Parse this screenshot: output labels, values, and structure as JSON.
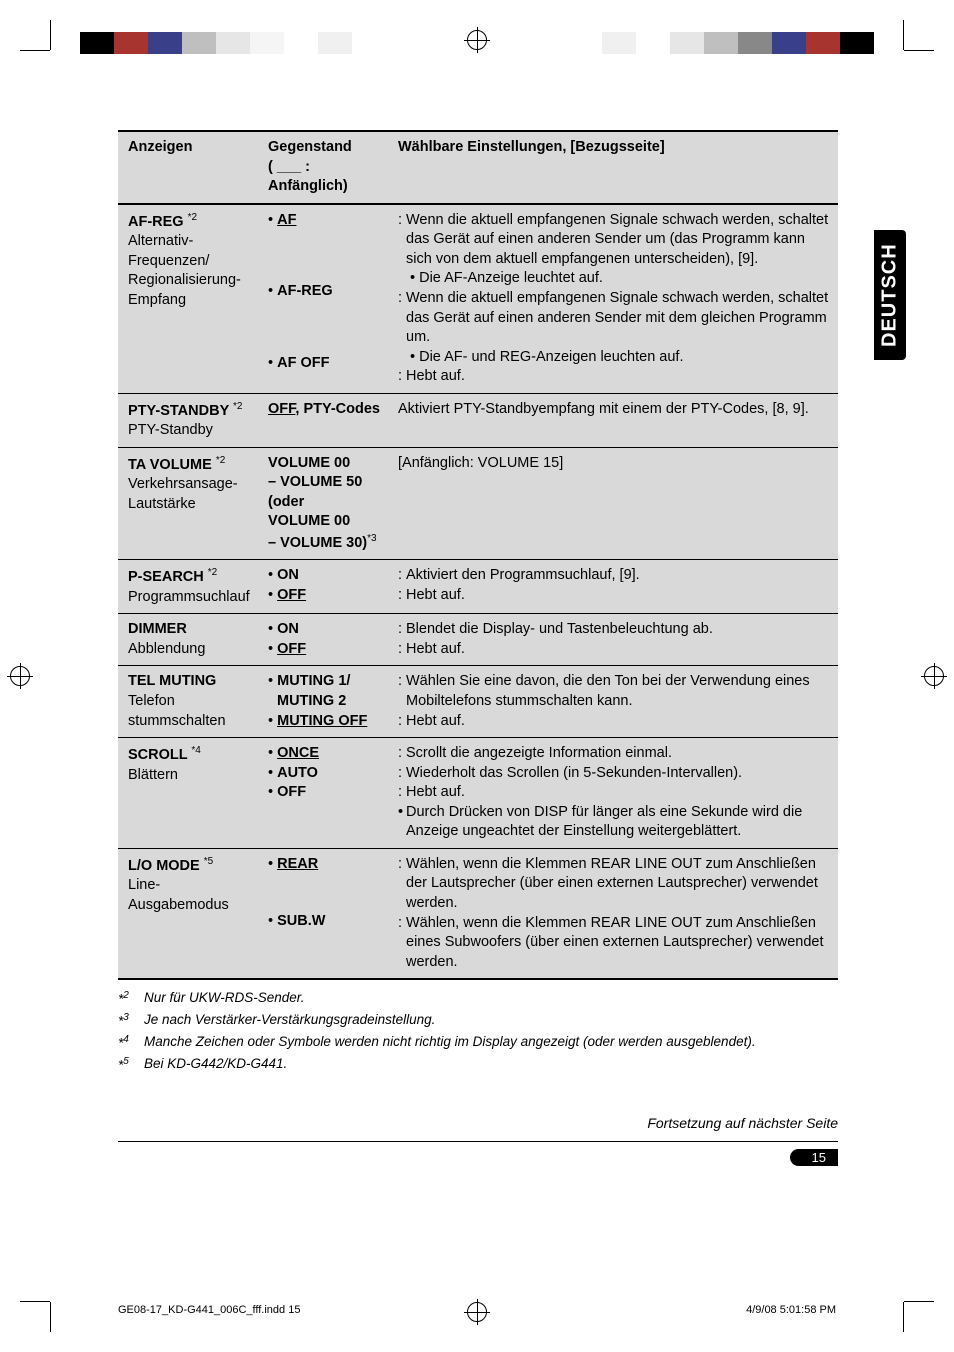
{
  "side_tab": "DEUTSCH",
  "color_swatches_left": [
    "#000000",
    "#a7342f",
    "#3a3f8a",
    "#bfbfbf",
    "#e6e6e6",
    "#f5f5f5",
    "#ffffff",
    "#f0f0f0"
  ],
  "color_swatches_right": [
    "#000000",
    "#a7342f",
    "#3a3f8a",
    "#888888",
    "#bfbfbf",
    "#e6e6e6",
    "#ffffff",
    "#f0f0f0"
  ],
  "header": {
    "col1": "Anzeigen",
    "col2_line1": "Gegenstand",
    "col2_line2": "( ___ :",
    "col2_line3": "Anfänglich)",
    "col3": "Wählbare Einstellungen, [Bezugsseite]"
  },
  "rows": {
    "afreg": {
      "title": "AF-REG",
      "sup": "*2",
      "sub1": "Alternativ-",
      "sub2": "Frequenzen/",
      "sub3": "Regionalisierung-",
      "sub4": "Empfang",
      "opt1": "AF",
      "opt2": "AF-REG",
      "opt3": "AF OFF",
      "d1": "Wenn die aktuell empfangenen Signale schwach werden, schaltet das Gerät auf einen anderen Sender um (das Programm kann sich von dem aktuell empfangenen unterscheiden), [9].",
      "d1b": "Die AF-Anzeige leuchtet auf.",
      "d2": "Wenn die aktuell empfangenen Signale schwach werden, schaltet das Gerät auf einen anderen Sender mit dem gleichen Programm um.",
      "d2b": "Die AF- und REG-Anzeigen leuchten auf.",
      "d3": "Hebt auf."
    },
    "pty": {
      "title": "PTY-STANDBY",
      "sup": "*2",
      "sub1": "PTY-Standby",
      "opt": "OFF, PTY-Codes",
      "opt_off": "OFF",
      "opt_rest": ", PTY-Codes",
      "d": "Aktiviert PTY-Standbyempfang mit einem der PTY-Codes, [8, 9]."
    },
    "tavol": {
      "title": "TA VOLUME",
      "sup": "*2",
      "sub1": "Verkehrsansage-",
      "sub2": "Lautstärke",
      "opt1": "VOLUME 00",
      "opt2": "– VOLUME 50",
      "opt3": "(oder",
      "opt4": "VOLUME 00",
      "opt5": "– VOLUME 30)",
      "opt5_sup": "*3",
      "d": "[Anfänglich: VOLUME 15]"
    },
    "psearch": {
      "title": "P-SEARCH",
      "sup": "*2",
      "sub1": "Programmsuchlauf",
      "opt1": "ON",
      "opt2": "OFF",
      "d1": "Aktiviert den Programmsuchlauf, [9].",
      "d2": "Hebt auf."
    },
    "dimmer": {
      "title": "DIMMER",
      "sub1": "Abblendung",
      "opt1": "ON",
      "opt2": "OFF",
      "d1": "Blendet die Display- und Tastenbeleuchtung ab.",
      "d2": "Hebt auf."
    },
    "tel": {
      "title": "TEL MUTING",
      "sub1": "Telefon",
      "sub2": "stummschalten",
      "opt1": "MUTING 1/",
      "opt2": "MUTING 2",
      "opt3": "MUTING OFF",
      "d1": "Wählen Sie eine davon, die den Ton bei der Verwendung eines Mobiltelefons stummschalten kann.",
      "d2": "Hebt auf."
    },
    "scroll": {
      "title": "SCROLL",
      "sup": "*4",
      "sub1": "Blättern",
      "opt1": "ONCE",
      "opt2": "AUTO",
      "opt3": "OFF",
      "d1": "Scrollt die angezeigte Information einmal.",
      "d2": "Wiederholt das Scrollen (in 5-Sekunden-Intervallen).",
      "d3": "Hebt auf.",
      "d4": "Durch Drücken von DISP für länger als eine Sekunde wird die Anzeige ungeachtet der Einstellung weitergeblättert."
    },
    "lo": {
      "title": "L/O MODE",
      "sup": "*5",
      "sub1": "Line-Ausgabemodus",
      "opt1": "REAR",
      "opt2": "SUB.W",
      "d1": "Wählen, wenn die Klemmen REAR LINE OUT zum Anschließen der Lautsprecher (über einen externen Lautsprecher) verwendet werden.",
      "d2": "Wählen, wenn die Klemmen REAR LINE OUT zum Anschließen eines Subwoofers (über einen externen Lautsprecher) verwendet werden."
    }
  },
  "footnotes": {
    "f2": {
      "mark": "*2",
      "text": "Nur für UKW-RDS-Sender."
    },
    "f3": {
      "mark": "*3",
      "text": "Je nach Verstärker-Verstärkungsgradeinstellung."
    },
    "f4": {
      "mark": "*4",
      "text": "Manche Zeichen oder Symbole werden nicht richtig im Display angezeigt (oder werden ausgeblendet)."
    },
    "f5": {
      "mark": "*5",
      "text": "Bei KD-G442/KD-G441."
    }
  },
  "continuation": "Fortsetzung auf nächster Seite",
  "page_number": "15",
  "print_left": "GE08-17_KD-G441_006C_fff.indd   15",
  "print_right": "4/9/08   5:01:58 PM"
}
